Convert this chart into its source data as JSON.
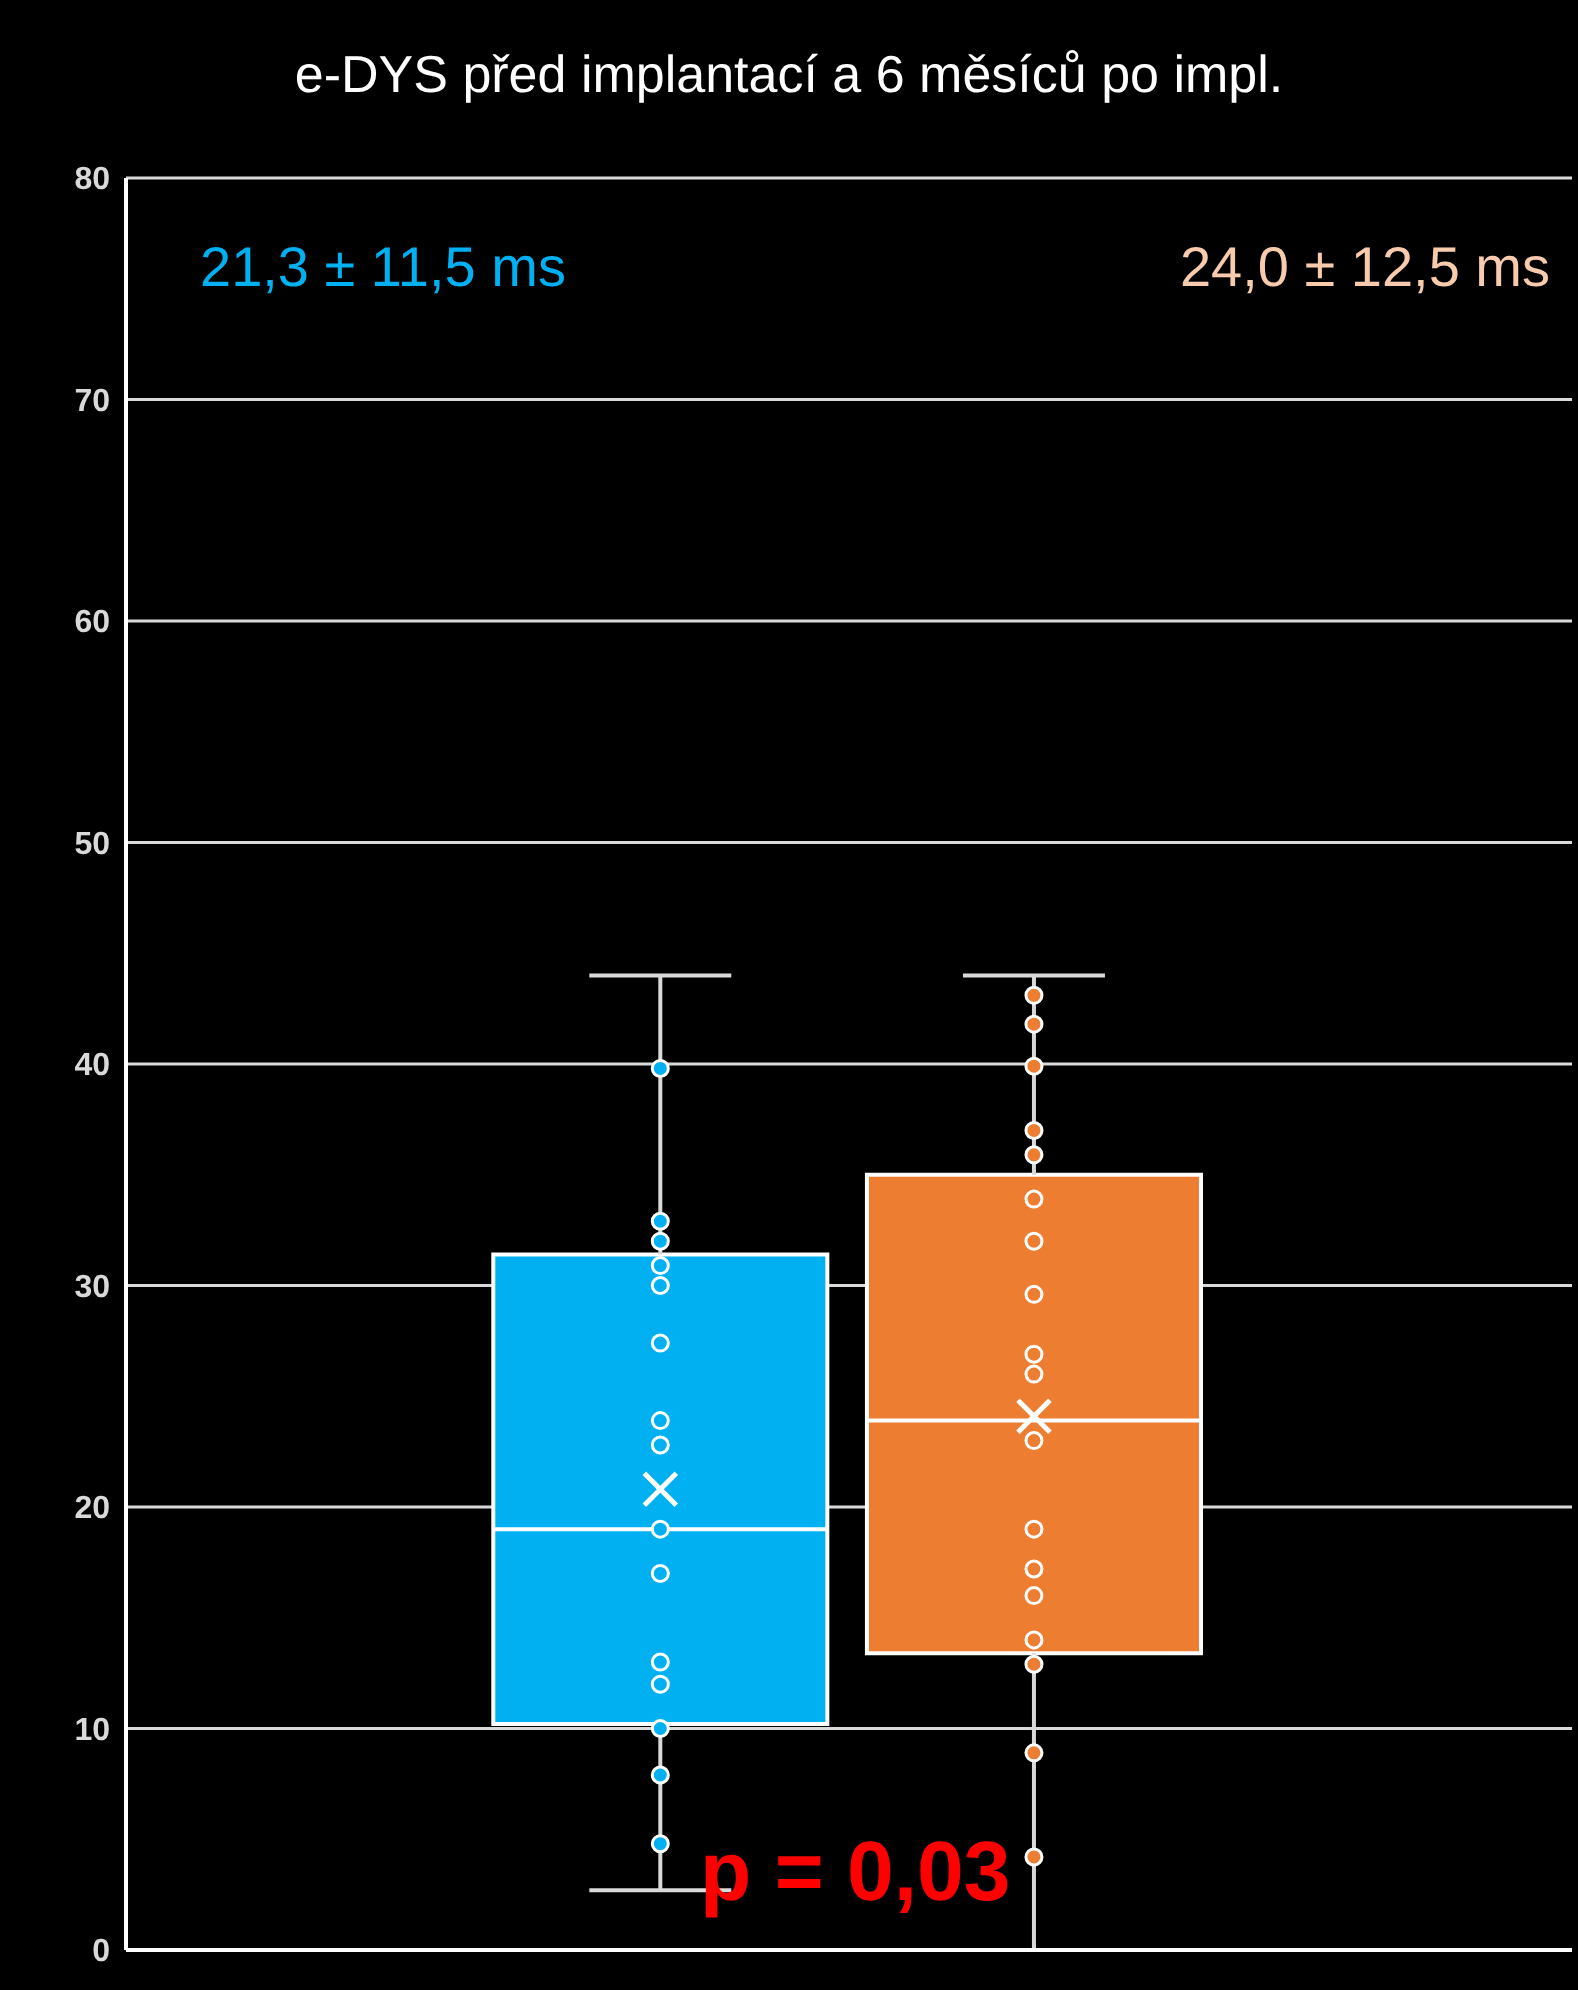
{
  "chart_data": {
    "type": "box",
    "title": "e-DYS před implantací a 6 měsíců po impl.",
    "categories": [
      null,
      null
    ],
    "ylim": [
      0,
      80
    ],
    "yticks": [
      0,
      10,
      20,
      30,
      40,
      50,
      60,
      70,
      80
    ],
    "grid": "y",
    "tick_labels": "y",
    "annotations": [
      "21,3 ± 11,5 ms",
      "24,0 ± 12,5 ms",
      "p = 0,03"
    ],
    "series": [
      {
        "colors": [
          "#00b0f0",
          "#ed7d31"
        ],
        "boxes": [
          {
            "low": 2.7,
            "q1": 10.2,
            "median": 19.0,
            "q3": 31.4,
            "high": 44.0,
            "mean": 20.8
          },
          {
            "low": 0,
            "q1": 13.4,
            "median": 23.9,
            "q3": 35.0,
            "high": 44.0,
            "mean": 24.1
          }
        ]
      },
      {
        "type": "scatter",
        "colors": [
          "#00b0f0",
          "#ed7d31"
        ],
        "values": [
          39.8,
          43.1
        ]
      },
      {
        "type": "scatter",
        "colors": [
          "#00b0f0",
          "#ed7d31"
        ],
        "values": [
          32.9,
          41.8
        ]
      },
      {
        "type": "scatter",
        "colors": [
          "#00b0f0",
          "#ed7d31"
        ],
        "values": [
          32.0,
          39.9
        ]
      },
      {
        "type": "scatter",
        "colors": [
          "#00b0f0",
          "#ed7d31"
        ],
        "values": [
          30.9,
          37.0
        ]
      },
      {
        "type": "scatter",
        "colors": [
          "#00b0f0",
          "#ed7d31"
        ],
        "values": [
          30.0,
          35.9
        ]
      },
      {
        "type": "scatter",
        "colors": [
          "#00b0f0",
          "#ed7d31"
        ],
        "values": [
          27.4,
          33.9
        ]
      },
      {
        "type": "scatter",
        "colors": [
          "#00b0f0",
          "#ed7d31"
        ],
        "values": [
          23.9,
          32.0
        ]
      },
      {
        "type": "scatter",
        "colors": [
          "#00b0f0",
          "#ed7d31"
        ],
        "values": [
          22.8,
          29.6
        ]
      },
      {
        "type": "scatter",
        "colors": [
          "#00b0f0",
          "#ed7d31"
        ],
        "values": [
          19.0,
          26.9
        ]
      },
      {
        "type": "scatter",
        "colors": [
          "#00b0f0",
          "#ed7d31"
        ],
        "values": [
          17.0,
          26.0
        ]
      },
      {
        "type": "scatter",
        "colors": [
          "#00b0f0",
          "#ed7d31"
        ],
        "values": [
          13.0,
          23.0
        ]
      },
      {
        "type": "scatter",
        "colors": [
          "#00b0f0",
          "#ed7d31"
        ],
        "values": [
          12.0,
          19.0
        ]
      },
      {
        "type": "scatter",
        "colors": [
          "#00b0f0",
          "#ed7d31"
        ],
        "values": [
          10.0,
          17.2
        ]
      },
      {
        "type": "scatter",
        "colors": [
          "#00b0f0",
          "#ed7d31"
        ],
        "values": [
          7.9,
          16.0
        ]
      },
      {
        "type": "scatter",
        "colors": [
          "#00b0f0",
          "#ed7d31"
        ],
        "values": [
          4.8,
          14.0
        ]
      },
      {
        "type": "scatter",
        "color": "#ed7d31",
        "values": [
          null,
          12.9
        ]
      },
      {
        "type": "scatter",
        "color": "#ed7d31",
        "values": [
          null,
          8.9
        ]
      },
      {
        "type": "scatter",
        "color": "#ed7d31",
        "values": [
          null,
          4.2
        ]
      }
    ]
  }
}
